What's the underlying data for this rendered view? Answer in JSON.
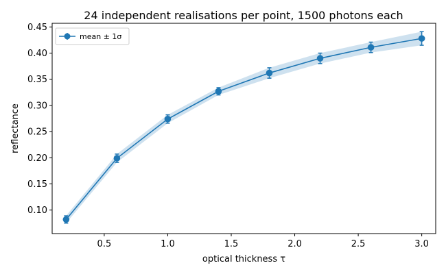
{
  "chart_data": {
    "type": "line",
    "title": "24 independent realisations per point, 1500 photons each",
    "xlabel": "optical thickness τ",
    "ylabel": "reflectance",
    "xlim": [
      0.09,
      3.11
    ],
    "ylim": [
      0.055,
      0.457
    ],
    "xticks": [
      0.5,
      1.0,
      1.5,
      2.0,
      2.5,
      3.0
    ],
    "xtick_labels": [
      "0.5",
      "1.0",
      "1.5",
      "2.0",
      "2.5",
      "3.0"
    ],
    "yticks": [
      0.1,
      0.15,
      0.2,
      0.25,
      0.3,
      0.35,
      0.4,
      0.45
    ],
    "ytick_labels": [
      "0.10",
      "0.15",
      "0.20",
      "0.25",
      "0.30",
      "0.35",
      "0.40",
      "0.45"
    ],
    "grid": false,
    "legend": {
      "position": "top-left",
      "entries": [
        "mean ± 1σ"
      ]
    },
    "series": [
      {
        "name": "mean ± 1σ",
        "color": "#1f77b4",
        "band_color": "#1f77b4",
        "x": [
          0.2,
          0.6,
          1.0,
          1.4,
          1.8,
          2.2,
          2.6,
          3.0
        ],
        "y": [
          0.082,
          0.199,
          0.274,
          0.327,
          0.362,
          0.39,
          0.411,
          0.428
        ],
        "err": [
          0.007,
          0.008,
          0.008,
          0.007,
          0.01,
          0.01,
          0.01,
          0.013
        ]
      }
    ]
  }
}
